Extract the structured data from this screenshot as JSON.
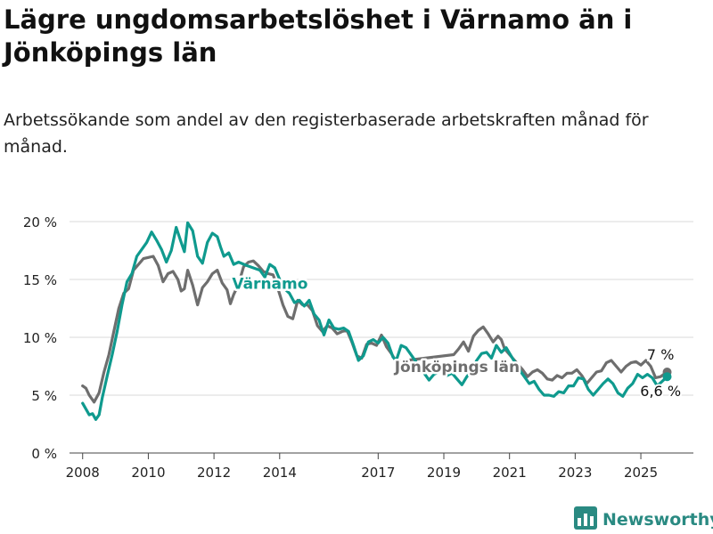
{
  "title": "Lägre ungdomsarbetslöshet i Värnamo än i Jönköpings län",
  "subtitle": "Arbetssökande som andel av den registerbaserade arbetskraften månad för månad.",
  "brand": {
    "name": "Newsworthy",
    "icon": "bar-chart-logo-icon"
  },
  "colors": {
    "varnamo": "#0f9a8e",
    "lan": "#6e6e6e",
    "grid": "#d9d9d9"
  },
  "chart_data": {
    "type": "line",
    "title": "Lägre ungdomsarbetslöshet i Värnamo än i Jönköpings län",
    "subtitle": "Arbetssökande som andel av den registerbaserade arbetskraften månad för månad.",
    "ylim": [
      0,
      20
    ],
    "xlim": [
      2007.6,
      2026.6
    ],
    "y_ticks": [
      0,
      5,
      10,
      15,
      20
    ],
    "y_tick_labels": [
      "0 %",
      "5 %",
      "10 %",
      "15 %",
      "20 %"
    ],
    "x_ticks": [
      2008,
      2010,
      2012,
      2014,
      2017,
      2019,
      2021,
      2023,
      2025
    ],
    "x_tick_labels": [
      "2008",
      "2010",
      "2012",
      "2014",
      "2017",
      "2019",
      "2021",
      "2023",
      "2025"
    ],
    "grid": true,
    "series": [
      {
        "name": "Jönköpings län",
        "color": "#6e6e6e",
        "end_label": "7 %",
        "points": [
          [
            2008.0,
            5.8
          ],
          [
            2008.1,
            5.6
          ],
          [
            2008.2,
            5.0
          ],
          [
            2008.35,
            4.4
          ],
          [
            2008.5,
            5.2
          ],
          [
            2008.65,
            7.0
          ],
          [
            2008.8,
            8.5
          ],
          [
            2008.95,
            10.5
          ],
          [
            2009.1,
            12.5
          ],
          [
            2009.25,
            13.8
          ],
          [
            2009.4,
            14.2
          ],
          [
            2009.55,
            15.8
          ],
          [
            2009.7,
            16.3
          ],
          [
            2009.85,
            16.8
          ],
          [
            2010.0,
            16.9
          ],
          [
            2010.15,
            17.0
          ],
          [
            2010.3,
            16.2
          ],
          [
            2010.45,
            14.8
          ],
          [
            2010.6,
            15.5
          ],
          [
            2010.75,
            15.7
          ],
          [
            2010.9,
            15.0
          ],
          [
            2011.0,
            14.0
          ],
          [
            2011.1,
            14.2
          ],
          [
            2011.2,
            15.8
          ],
          [
            2011.35,
            14.5
          ],
          [
            2011.5,
            12.8
          ],
          [
            2011.65,
            14.3
          ],
          [
            2011.8,
            14.8
          ],
          [
            2011.95,
            15.5
          ],
          [
            2012.1,
            15.8
          ],
          [
            2012.25,
            14.7
          ],
          [
            2012.4,
            14.1
          ],
          [
            2012.5,
            12.9
          ],
          [
            2012.6,
            13.7
          ],
          [
            2012.75,
            14.6
          ],
          [
            2012.9,
            16.1
          ],
          [
            2013.05,
            16.5
          ],
          [
            2013.2,
            16.6
          ],
          [
            2013.35,
            16.2
          ],
          [
            2013.5,
            15.7
          ],
          [
            2013.65,
            15.5
          ],
          [
            2013.8,
            15.4
          ],
          [
            2013.95,
            14.2
          ],
          [
            2014.1,
            12.8
          ],
          [
            2014.25,
            11.8
          ],
          [
            2014.4,
            11.6
          ],
          [
            2014.55,
            13.2
          ],
          [
            2014.7,
            12.8
          ],
          [
            2014.85,
            12.8
          ],
          [
            2015.0,
            12.3
          ],
          [
            2015.15,
            11.0
          ],
          [
            2015.3,
            10.5
          ],
          [
            2015.45,
            11.0
          ],
          [
            2015.6,
            10.8
          ],
          [
            2015.75,
            10.3
          ],
          [
            2015.9,
            10.5
          ],
          [
            2016.05,
            10.6
          ],
          [
            2016.2,
            9.6
          ],
          [
            2016.35,
            8.4
          ],
          [
            2016.5,
            8.2
          ],
          [
            2016.65,
            9.4
          ],
          [
            2016.8,
            9.5
          ],
          [
            2016.95,
            9.3
          ],
          [
            2017.1,
            10.2
          ],
          [
            2017.25,
            9.2
          ],
          [
            2017.4,
            8.6
          ],
          [
            2017.55,
            7.9
          ],
          [
            2019.3,
            8.5
          ],
          [
            2019.45,
            9.0
          ],
          [
            2019.6,
            9.6
          ],
          [
            2019.75,
            8.8
          ],
          [
            2019.9,
            10.1
          ],
          [
            2020.05,
            10.6
          ],
          [
            2020.2,
            10.9
          ],
          [
            2020.35,
            10.3
          ],
          [
            2020.5,
            9.6
          ],
          [
            2020.65,
            10.1
          ],
          [
            2020.75,
            9.8
          ],
          [
            2020.85,
            9.0
          ],
          [
            2021.4,
            7.2
          ],
          [
            2021.55,
            6.6
          ],
          [
            2021.7,
            7.0
          ],
          [
            2021.85,
            7.2
          ],
          [
            2022.0,
            6.9
          ],
          [
            2022.15,
            6.4
          ],
          [
            2022.3,
            6.3
          ],
          [
            2022.45,
            6.7
          ],
          [
            2022.6,
            6.5
          ],
          [
            2022.75,
            6.9
          ],
          [
            2022.9,
            6.9
          ],
          [
            2023.05,
            7.2
          ],
          [
            2023.2,
            6.7
          ],
          [
            2023.35,
            6.0
          ],
          [
            2023.5,
            6.5
          ],
          [
            2023.65,
            7.0
          ],
          [
            2023.8,
            7.1
          ],
          [
            2023.95,
            7.8
          ],
          [
            2024.1,
            8.0
          ],
          [
            2024.25,
            7.5
          ],
          [
            2024.4,
            7.0
          ],
          [
            2024.55,
            7.5
          ],
          [
            2024.7,
            7.8
          ],
          [
            2024.85,
            7.9
          ],
          [
            2025.0,
            7.6
          ],
          [
            2025.15,
            8.0
          ],
          [
            2025.3,
            7.5
          ],
          [
            2025.45,
            6.5
          ],
          [
            2025.6,
            6.6
          ],
          [
            2025.7,
            6.8
          ],
          [
            2025.8,
            7.0
          ]
        ]
      },
      {
        "name": "Värnamo",
        "color": "#0f9a8e",
        "end_label": "6,6 %",
        "points": [
          [
            2008.0,
            4.3
          ],
          [
            2008.1,
            3.8
          ],
          [
            2008.2,
            3.3
          ],
          [
            2008.3,
            3.4
          ],
          [
            2008.4,
            2.9
          ],
          [
            2008.5,
            3.3
          ],
          [
            2008.6,
            4.8
          ],
          [
            2008.75,
            6.7
          ],
          [
            2008.9,
            8.5
          ],
          [
            2009.05,
            10.5
          ],
          [
            2009.2,
            12.8
          ],
          [
            2009.35,
            14.8
          ],
          [
            2009.5,
            15.5
          ],
          [
            2009.65,
            17.0
          ],
          [
            2009.8,
            17.6
          ],
          [
            2009.95,
            18.2
          ],
          [
            2010.1,
            19.1
          ],
          [
            2010.25,
            18.4
          ],
          [
            2010.4,
            17.6
          ],
          [
            2010.55,
            16.5
          ],
          [
            2010.7,
            17.5
          ],
          [
            2010.85,
            19.5
          ],
          [
            2011.0,
            18.2
          ],
          [
            2011.1,
            17.4
          ],
          [
            2011.2,
            19.9
          ],
          [
            2011.35,
            19.2
          ],
          [
            2011.5,
            17.0
          ],
          [
            2011.65,
            16.4
          ],
          [
            2011.8,
            18.2
          ],
          [
            2011.95,
            19.0
          ],
          [
            2012.1,
            18.7
          ],
          [
            2012.2,
            17.8
          ],
          [
            2012.3,
            17.0
          ],
          [
            2012.45,
            17.3
          ],
          [
            2012.6,
            16.3
          ],
          [
            2012.75,
            16.5
          ],
          [
            2013.0,
            16.2
          ],
          [
            2013.2,
            16.0
          ],
          [
            2013.4,
            15.8
          ],
          [
            2013.55,
            15.2
          ],
          [
            2013.7,
            16.3
          ],
          [
            2013.85,
            16.0
          ],
          [
            2014.0,
            15.0
          ],
          [
            2014.15,
            14.2
          ],
          [
            2014.3,
            13.8
          ],
          [
            2014.45,
            13.0
          ],
          [
            2014.6,
            13.2
          ],
          [
            2014.75,
            12.7
          ],
          [
            2014.9,
            13.2
          ],
          [
            2015.05,
            12.0
          ],
          [
            2015.2,
            11.5
          ],
          [
            2015.35,
            10.2
          ],
          [
            2015.5,
            11.5
          ],
          [
            2015.65,
            10.8
          ],
          [
            2015.8,
            10.7
          ],
          [
            2015.95,
            10.8
          ],
          [
            2016.1,
            10.5
          ],
          [
            2016.25,
            9.3
          ],
          [
            2016.4,
            8.0
          ],
          [
            2016.55,
            8.4
          ],
          [
            2016.7,
            9.6
          ],
          [
            2016.85,
            9.8
          ],
          [
            2017.0,
            9.5
          ],
          [
            2017.15,
            10.0
          ],
          [
            2017.3,
            9.5
          ],
          [
            2017.45,
            8.3
          ],
          [
            2017.55,
            8.0
          ],
          [
            2017.7,
            9.3
          ],
          [
            2017.85,
            9.1
          ],
          [
            2018.55,
            6.3
          ],
          [
            2018.7,
            6.8
          ],
          [
            2018.85,
            7.0
          ],
          [
            2019.0,
            7.3
          ],
          [
            2019.1,
            6.7
          ],
          [
            2019.25,
            6.9
          ],
          [
            2019.4,
            6.4
          ],
          [
            2019.55,
            5.9
          ],
          [
            2019.7,
            6.6
          ],
          [
            2019.85,
            7.1
          ],
          [
            2020.0,
            8.0
          ],
          [
            2020.15,
            8.6
          ],
          [
            2020.3,
            8.7
          ],
          [
            2020.45,
            8.2
          ],
          [
            2020.6,
            9.3
          ],
          [
            2020.75,
            8.7
          ],
          [
            2020.9,
            9.1
          ],
          [
            2021.3,
            7.2
          ],
          [
            2021.45,
            6.6
          ],
          [
            2021.6,
            6.0
          ],
          [
            2021.75,
            6.2
          ],
          [
            2021.9,
            5.5
          ],
          [
            2022.05,
            5.0
          ],
          [
            2022.2,
            5.0
          ],
          [
            2022.35,
            4.9
          ],
          [
            2022.5,
            5.3
          ],
          [
            2022.65,
            5.2
          ],
          [
            2022.8,
            5.8
          ],
          [
            2022.95,
            5.8
          ],
          [
            2023.1,
            6.5
          ],
          [
            2023.25,
            6.4
          ],
          [
            2023.4,
            5.5
          ],
          [
            2023.55,
            5.0
          ],
          [
            2023.7,
            5.5
          ],
          [
            2023.85,
            6.0
          ],
          [
            2024.0,
            6.4
          ],
          [
            2024.15,
            6.0
          ],
          [
            2024.3,
            5.2
          ],
          [
            2024.45,
            4.9
          ],
          [
            2024.6,
            5.6
          ],
          [
            2024.75,
            6.0
          ],
          [
            2024.9,
            6.8
          ],
          [
            2025.05,
            6.5
          ],
          [
            2025.2,
            6.8
          ],
          [
            2025.35,
            6.5
          ],
          [
            2025.5,
            5.8
          ],
          [
            2025.65,
            6.2
          ],
          [
            2025.8,
            6.6
          ]
        ]
      }
    ]
  }
}
